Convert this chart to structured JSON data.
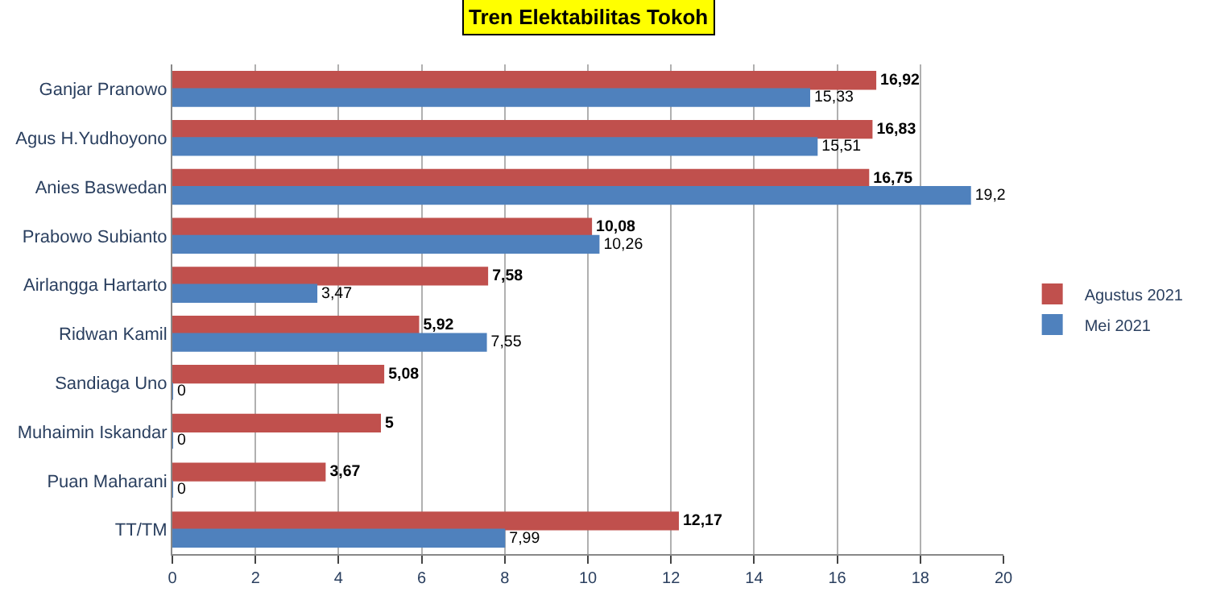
{
  "chart_data": {
    "type": "bar",
    "orientation": "horizontal",
    "title": "Tren Elektabilitas Tokoh",
    "categories": [
      "Ganjar Pranowo",
      "Agus H.Yudhoyono",
      "Anies Baswedan",
      "Prabowo Subianto",
      "Airlangga Hartarto",
      "Ridwan Kamil",
      "Sandiaga Uno",
      "Muhaimin Iskandar",
      "Puan Maharani",
      "TT/TM"
    ],
    "series": [
      {
        "name": "Agustus 2021",
        "color": "#c0504d",
        "values": [
          16.92,
          16.83,
          16.75,
          10.08,
          7.58,
          5.92,
          5.08,
          5,
          3.67,
          12.17
        ],
        "value_labels": [
          "16,92",
          "16,83",
          "16,75",
          "10,08",
          "7,58",
          "5,92",
          "5,08",
          "5",
          "3,67",
          "12,17"
        ]
      },
      {
        "name": "Mei 2021",
        "color": "#4f81bd",
        "values": [
          15.33,
          15.51,
          19.2,
          10.26,
          3.47,
          7.55,
          0,
          0,
          0,
          7.99
        ],
        "value_labels": [
          "15,33",
          "15,51",
          "19,2",
          "10,26",
          "3,47",
          "7,55",
          "0",
          "0",
          "0",
          "7,99"
        ]
      }
    ],
    "xlim": [
      0,
      20
    ],
    "xticks": [
      0,
      2,
      4,
      6,
      8,
      10,
      12,
      14,
      16,
      18,
      20
    ],
    "grid": "x",
    "legend": "right"
  }
}
